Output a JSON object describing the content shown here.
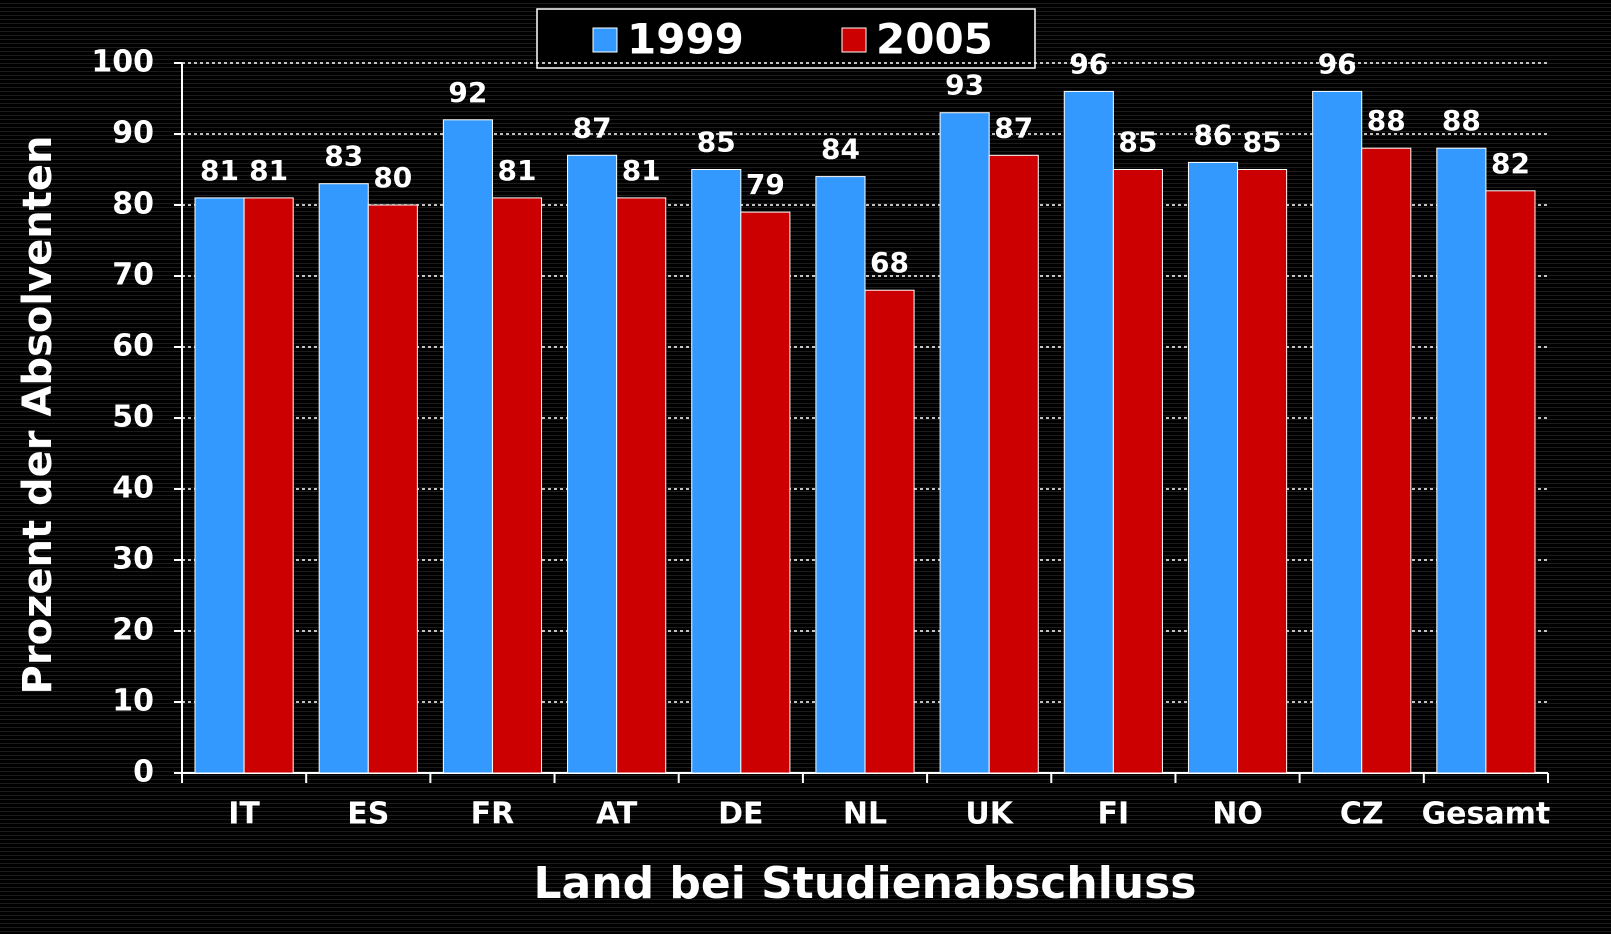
{
  "chart_data": {
    "type": "bar",
    "x_label": "Land bei Studienabschluss",
    "y_label": "Prozent der Absolventen",
    "categories": [
      "IT",
      "ES",
      "FR",
      "AT",
      "DE",
      "NL",
      "UK",
      "FI",
      "NO",
      "CZ",
      "Gesamt"
    ],
    "series": [
      {
        "name": "1999",
        "color": "#3399ff",
        "values": [
          81,
          83,
          92,
          87,
          85,
          84,
          93,
          96,
          86,
          96,
          88
        ]
      },
      {
        "name": "2005",
        "color": "#cc0000",
        "values": [
          81,
          80,
          81,
          81,
          79,
          68,
          87,
          85,
          85,
          88,
          82
        ]
      }
    ],
    "ylim": [
      0,
      100
    ],
    "yticks": [
      0,
      10,
      20,
      30,
      40,
      50,
      60,
      70,
      80,
      90,
      100
    ],
    "grid": true,
    "legend": "top"
  }
}
